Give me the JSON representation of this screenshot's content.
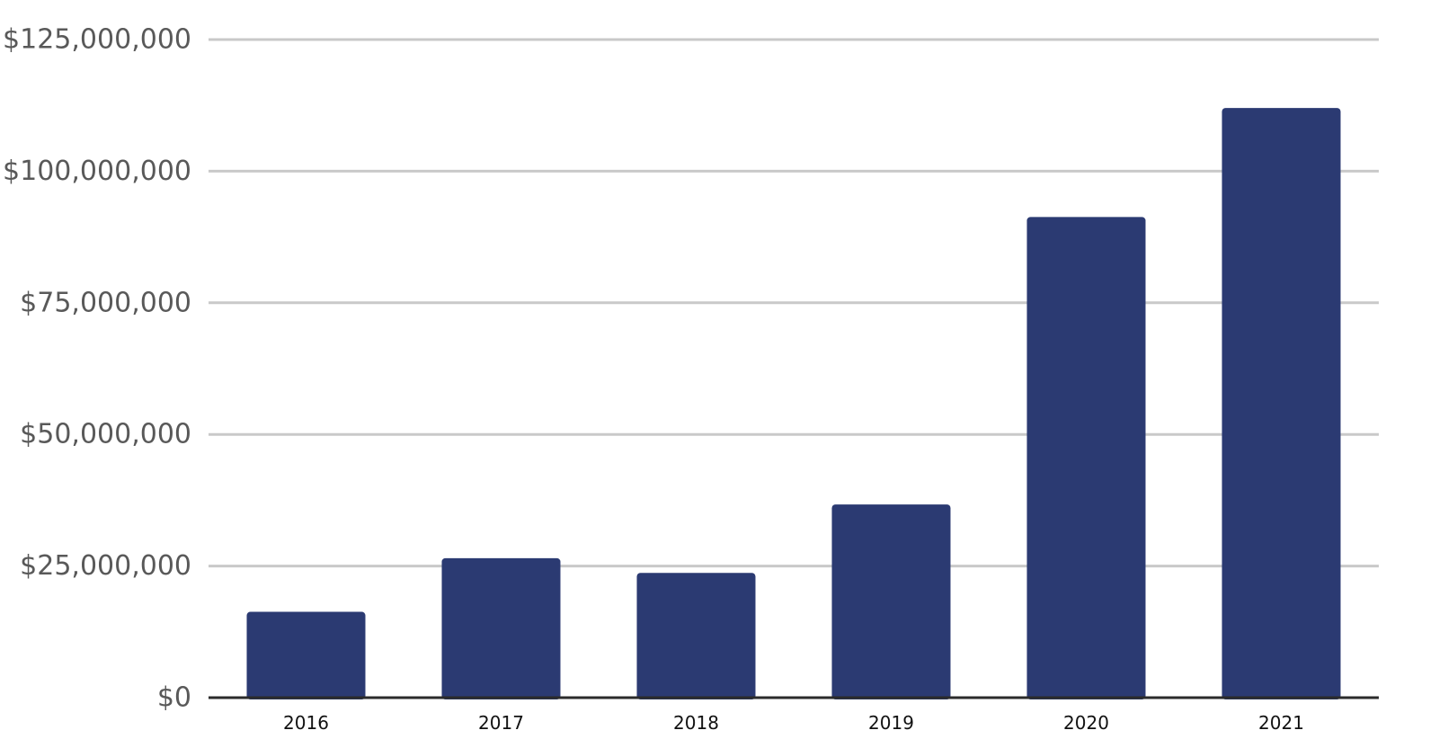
{
  "chart_data": {
    "type": "bar",
    "categories": [
      "2016",
      "2017",
      "2018",
      "2019",
      "2020",
      "2021"
    ],
    "values": [
      16300000,
      26500000,
      23700000,
      36700000,
      91300000,
      112000000
    ],
    "title": "",
    "xlabel": "",
    "ylabel": "",
    "ylim": [
      0,
      125000000
    ],
    "yticks": [
      0,
      25000000,
      50000000,
      75000000,
      100000000,
      125000000
    ],
    "ytick_labels": [
      "$0",
      "$25,000,000",
      "$50,000,000",
      "$75,000,000",
      "$100,000,000",
      "$125,000,000"
    ],
    "grid": true,
    "legend": "none",
    "colors": {
      "bar": "#2b3a72",
      "grid": "#c9c9c9",
      "axis": "#2b2b2b",
      "y_label_text": "#595959",
      "x_label_text": "#111111"
    }
  }
}
